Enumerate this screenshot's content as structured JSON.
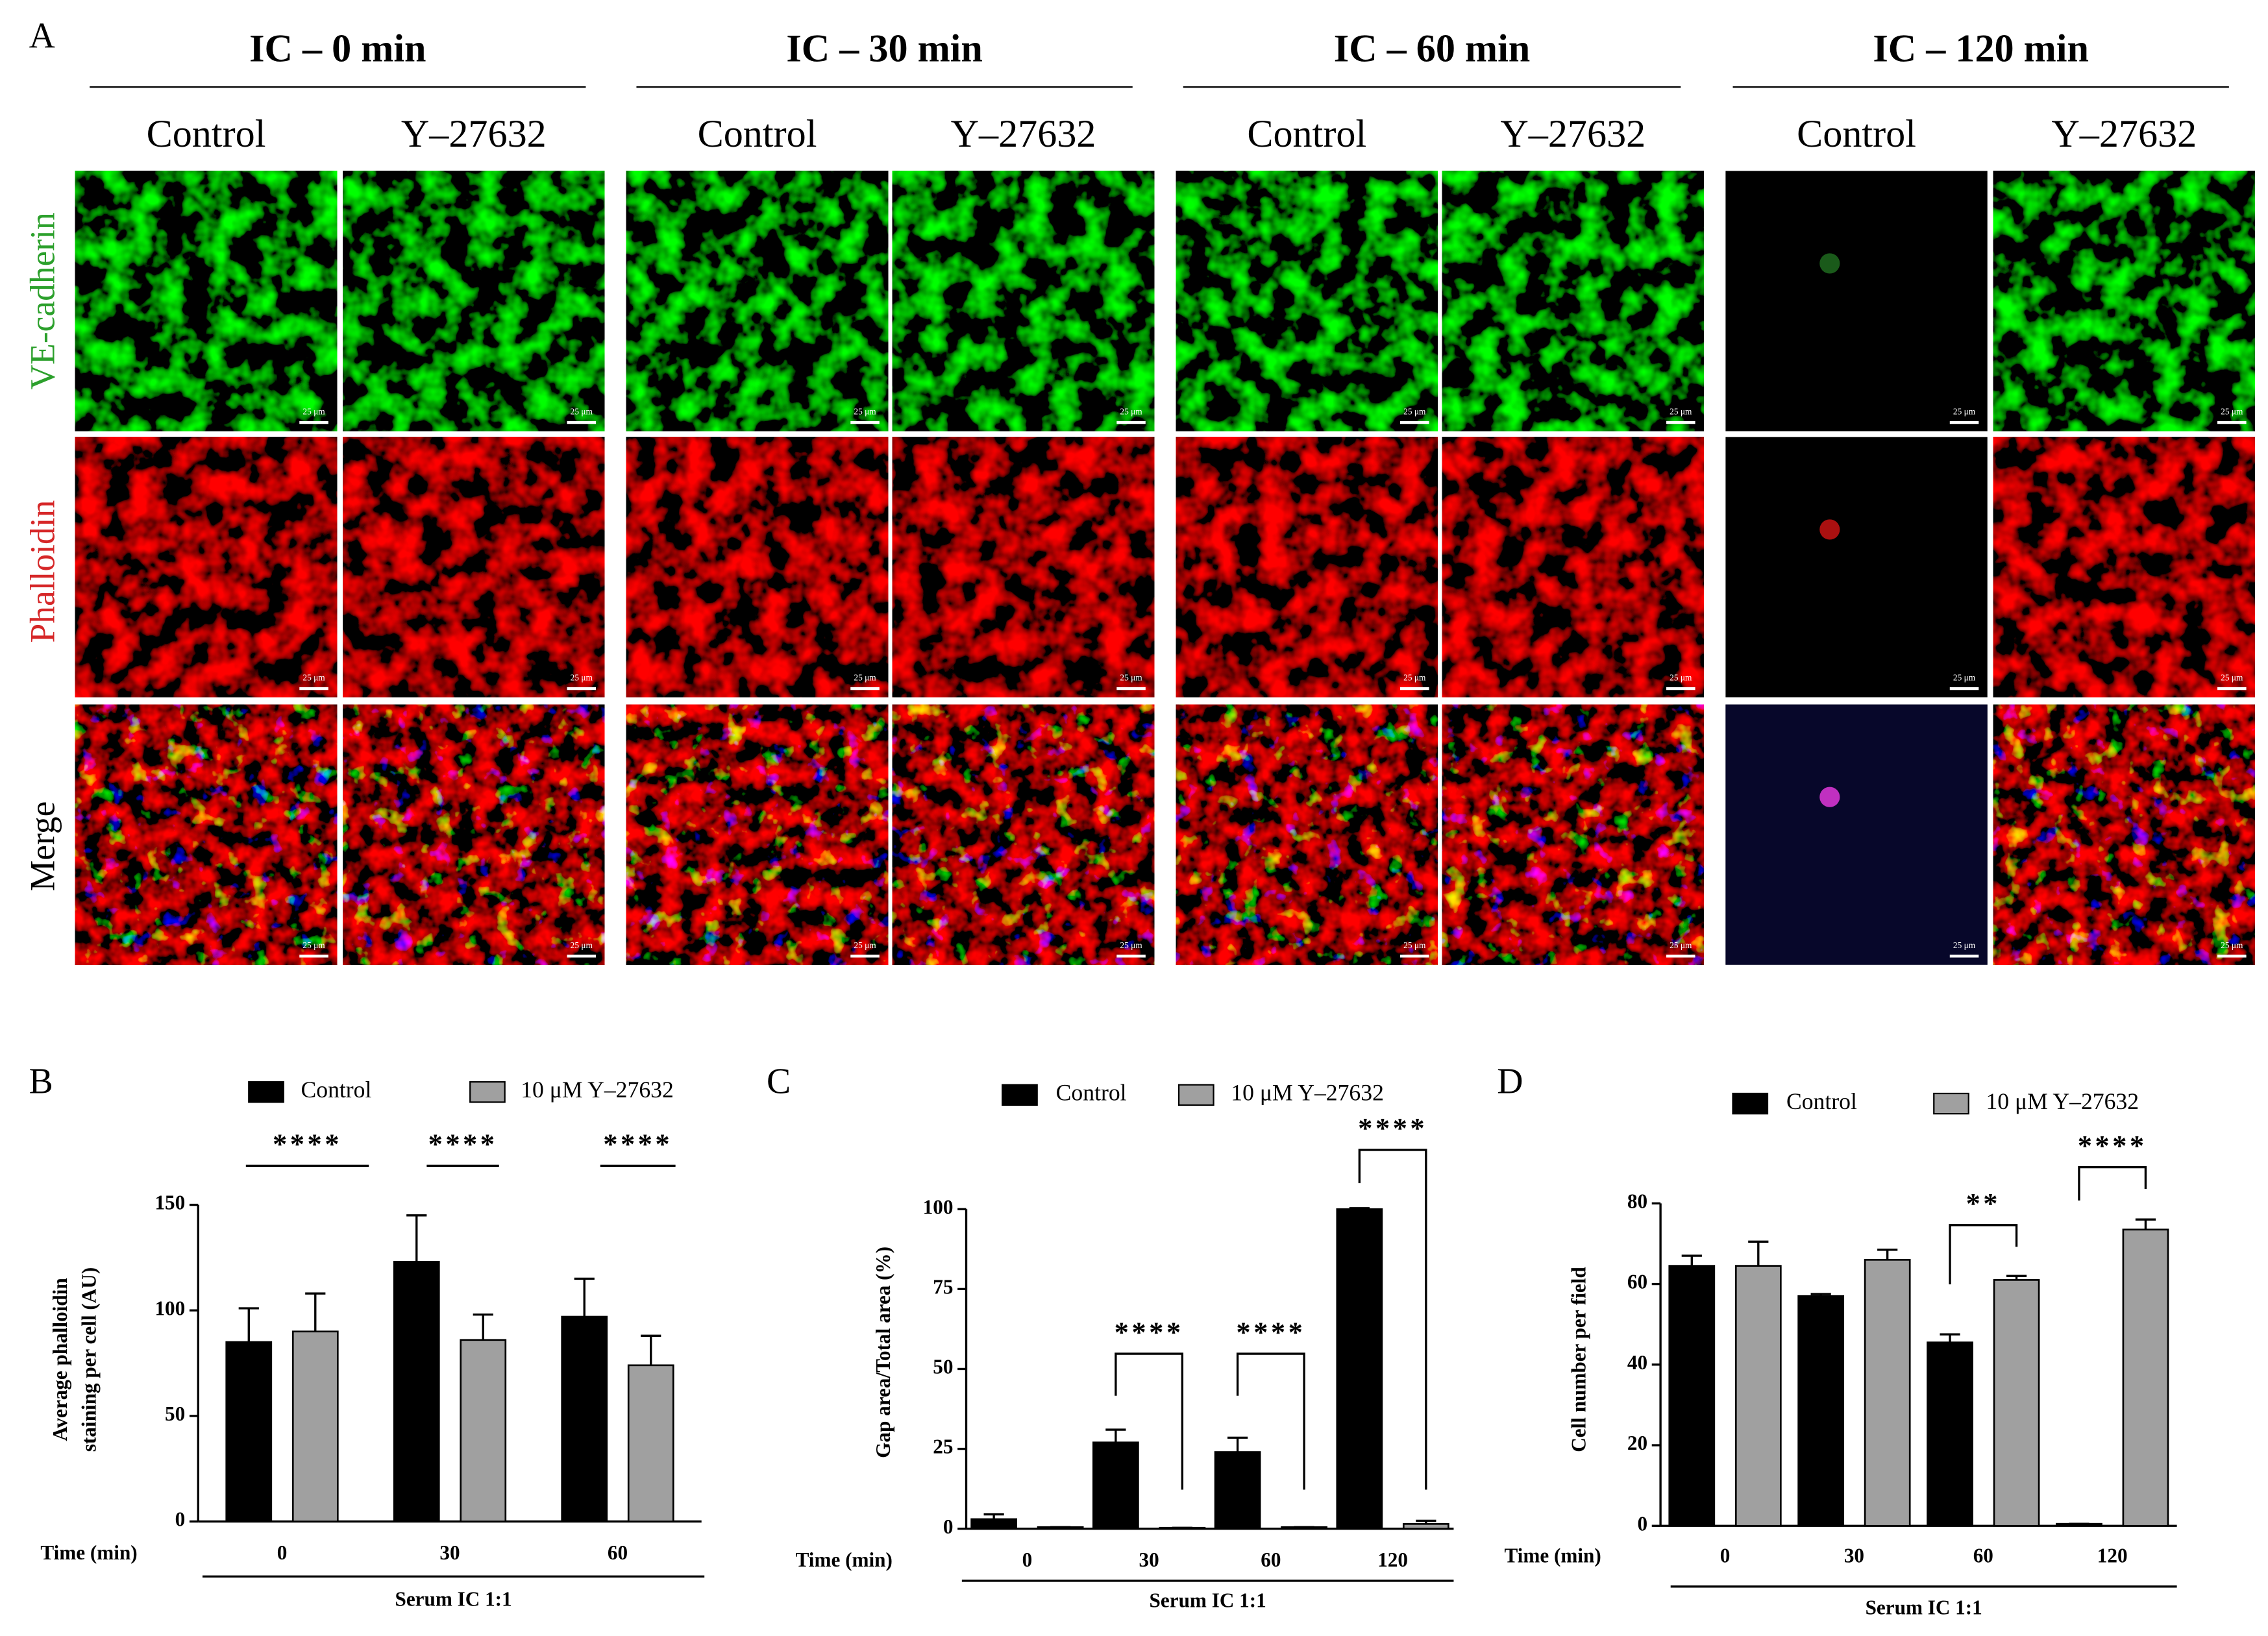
{
  "panel_a": {
    "label": "A",
    "columns": [
      {
        "title": "IC – 0 min",
        "conditions": [
          "Control",
          "Y–27632"
        ]
      },
      {
        "title": "IC – 30 min",
        "conditions": [
          "Control",
          "Y–27632"
        ]
      },
      {
        "title": "IC – 60 min",
        "conditions": [
          "Control",
          "Y–27632"
        ]
      },
      {
        "title": "IC – 120 min",
        "conditions": [
          "Control",
          "Y–27632"
        ]
      }
    ],
    "rows": [
      "VE-cadherin",
      "Phalloidin",
      "Merge"
    ],
    "scale_bar": "25 μm"
  },
  "chart_data": [
    {
      "type": "bar",
      "panel_label": "B",
      "ylabel": [
        "Average phalloidin",
        "staining per cell (AU)"
      ],
      "xlabel": "Time (min)",
      "group_label": "Serum IC 1:1",
      "categories": [
        "0",
        "30",
        "60"
      ],
      "series": [
        {
          "name": "Control",
          "color": "#000000",
          "values": [
            85,
            123,
            97
          ],
          "errors": [
            16,
            22,
            18
          ]
        },
        {
          "name": "10 μM Y–27632",
          "color": "#a0a0a0",
          "values": [
            90,
            86,
            74
          ],
          "errors": [
            18,
            12,
            14
          ]
        }
      ],
      "ylim": [
        0,
        150
      ],
      "yticks": [
        0,
        50,
        100,
        150
      ],
      "annotations": [
        "****",
        "****",
        "****"
      ]
    },
    {
      "type": "bar",
      "panel_label": "C",
      "ylabel": [
        "Gap area/Total area (%)"
      ],
      "xlabel": "Time (min)",
      "group_label": "Serum IC 1:1",
      "categories": [
        "0",
        "30",
        "60",
        "120"
      ],
      "series": [
        {
          "name": "Control",
          "color": "#000000",
          "values": [
            3,
            27,
            24,
            100
          ],
          "errors": [
            1.5,
            4,
            4.5,
            0.3
          ]
        },
        {
          "name": "10 μM Y–27632",
          "color": "#a0a0a0",
          "values": [
            0.5,
            0.3,
            0.5,
            1.5
          ],
          "errors": [
            0,
            0,
            0,
            1
          ]
        }
      ],
      "ylim": [
        0,
        100
      ],
      "yticks": [
        0,
        25,
        50,
        75,
        100
      ],
      "annotations": [
        "****",
        "****",
        "****"
      ]
    },
    {
      "type": "bar",
      "panel_label": "D",
      "ylabel": [
        "Cell number per field"
      ],
      "xlabel": "Time (min)",
      "group_label": "Serum IC 1:1",
      "categories": [
        "0",
        "30",
        "60",
        "120"
      ],
      "series": [
        {
          "name": "Control",
          "color": "#000000",
          "values": [
            64.5,
            57,
            45.5,
            0.5
          ],
          "errors": [
            2.5,
            0.5,
            2,
            0
          ]
        },
        {
          "name": "10 μM Y–27632",
          "color": "#a0a0a0",
          "values": [
            64.5,
            66,
            61,
            73.5
          ],
          "errors": [
            6,
            2.5,
            1,
            2.5
          ]
        }
      ],
      "ylim": [
        0,
        80
      ],
      "yticks": [
        0,
        20,
        40,
        60,
        80
      ],
      "annotations": [
        "**",
        "****"
      ]
    }
  ]
}
